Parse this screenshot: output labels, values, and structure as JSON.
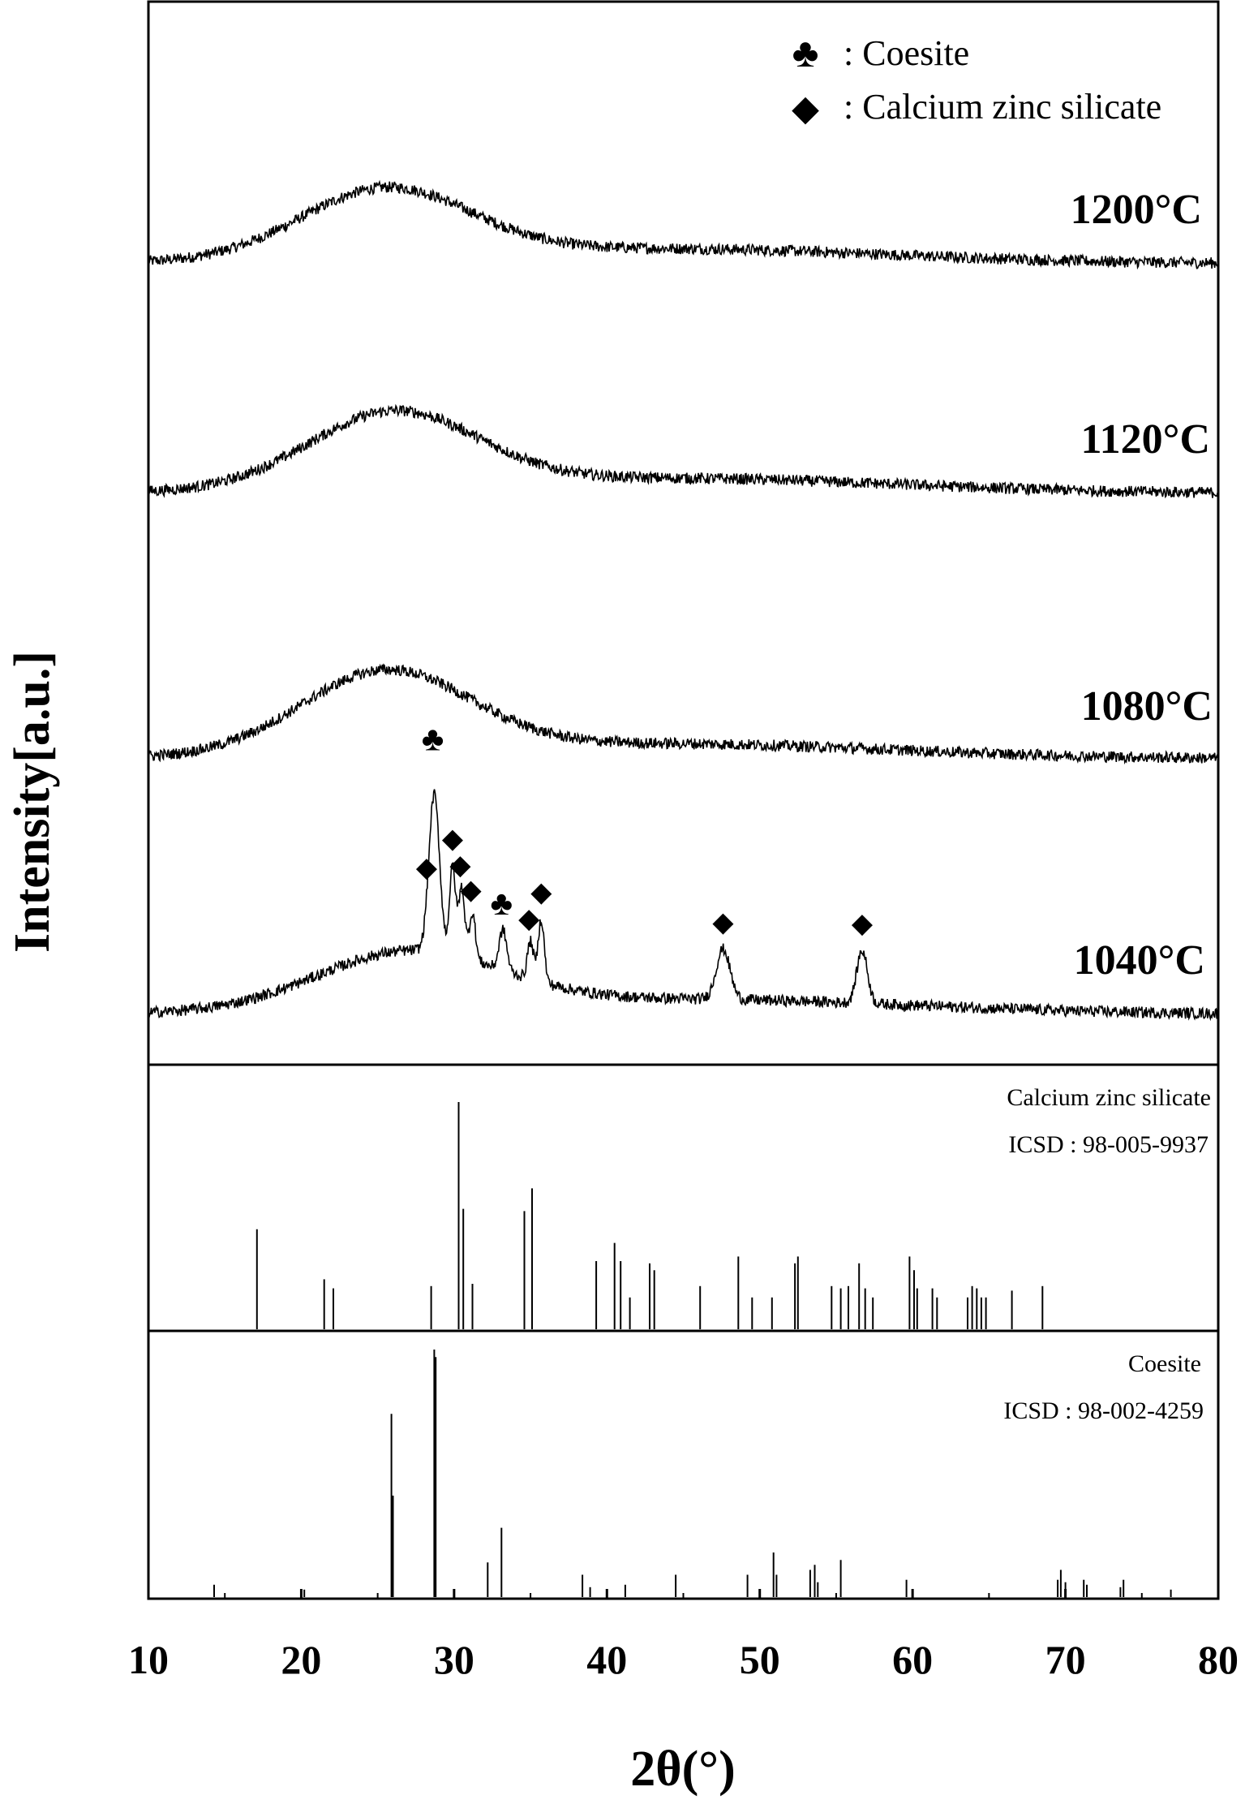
{
  "chart_data": {
    "type": "line",
    "xlabel": "2θ(°)",
    "ylabel": "Intensity[a.u.]",
    "xlim": [
      10,
      80
    ],
    "x_ticks": [
      10,
      20,
      30,
      40,
      50,
      60,
      70,
      80
    ],
    "grid": false,
    "legend": {
      "position": "top-right",
      "entries": [
        {
          "marker": "club",
          "symbol": "♣",
          "label": ": Coesite"
        },
        {
          "marker": "diamond",
          "symbol": "◆",
          "label": ": Calcium zinc silicate"
        }
      ]
    },
    "series": [
      {
        "name": "1200°C",
        "hump_center": 25.5,
        "hump_height": 0.55,
        "hump_width": 5.5,
        "peaks": []
      },
      {
        "name": "1120°C",
        "hump_center": 26.0,
        "hump_height": 0.6,
        "hump_width": 5.5,
        "peaks": []
      },
      {
        "name": "1080°C",
        "hump_center": 25.5,
        "hump_height": 0.65,
        "hump_width": 5.5,
        "peaks": []
      },
      {
        "name": "1040°C",
        "hump_center": 27.0,
        "hump_height": 0.45,
        "hump_width": 6.0,
        "peaks": [
          {
            "x": 28.7,
            "h": 1.25,
            "w": 0.35
          },
          {
            "x": 29.9,
            "h": 0.7,
            "w": 0.2
          },
          {
            "x": 30.5,
            "h": 0.55,
            "w": 0.2
          },
          {
            "x": 31.2,
            "h": 0.38,
            "w": 0.2
          },
          {
            "x": 33.2,
            "h": 0.32,
            "w": 0.25
          },
          {
            "x": 35.0,
            "h": 0.3,
            "w": 0.2
          },
          {
            "x": 35.7,
            "h": 0.5,
            "w": 0.2
          },
          {
            "x": 47.6,
            "h": 0.4,
            "w": 0.45
          },
          {
            "x": 56.7,
            "h": 0.42,
            "w": 0.35
          }
        ],
        "markers": [
          {
            "x": 28.2,
            "symbol": "◆",
            "phase": "Calcium zinc silicate"
          },
          {
            "x": 28.6,
            "symbol": "♣",
            "phase": "Coesite"
          },
          {
            "x": 29.9,
            "symbol": "◆",
            "phase": "Calcium zinc silicate"
          },
          {
            "x": 30.4,
            "symbol": "◆",
            "phase": "Calcium zinc silicate"
          },
          {
            "x": 31.1,
            "symbol": "◆",
            "phase": "Calcium zinc silicate"
          },
          {
            "x": 33.1,
            "symbol": "♣",
            "phase": "Coesite"
          },
          {
            "x": 34.9,
            "symbol": "◆",
            "phase": "Calcium zinc silicate"
          },
          {
            "x": 35.7,
            "symbol": "◆",
            "phase": "Calcium zinc silicate"
          },
          {
            "x": 47.6,
            "symbol": "◆",
            "phase": "Calcium zinc silicate"
          },
          {
            "x": 56.7,
            "symbol": "◆",
            "phase": "Calcium zinc silicate"
          }
        ]
      }
    ],
    "reference_patterns": [
      {
        "name": "Calcium zinc silicate",
        "id": "ICSD : 98-005-9937",
        "sticks": [
          [
            17.1,
            0.44
          ],
          [
            21.5,
            0.22
          ],
          [
            22.1,
            0.18
          ],
          [
            28.5,
            0.19
          ],
          [
            30.3,
            1.0
          ],
          [
            30.6,
            0.53
          ],
          [
            31.2,
            0.2
          ],
          [
            34.6,
            0.52
          ],
          [
            35.1,
            0.62
          ],
          [
            39.3,
            0.3
          ],
          [
            40.5,
            0.38
          ],
          [
            40.9,
            0.3
          ],
          [
            41.5,
            0.14
          ],
          [
            42.8,
            0.29
          ],
          [
            43.1,
            0.26
          ],
          [
            46.1,
            0.19
          ],
          [
            48.6,
            0.32
          ],
          [
            49.5,
            0.14
          ],
          [
            50.8,
            0.14
          ],
          [
            52.3,
            0.29
          ],
          [
            52.5,
            0.32
          ],
          [
            54.7,
            0.19
          ],
          [
            55.3,
            0.18
          ],
          [
            55.8,
            0.19
          ],
          [
            56.5,
            0.29
          ],
          [
            56.9,
            0.18
          ],
          [
            57.4,
            0.14
          ],
          [
            59.8,
            0.32
          ],
          [
            60.1,
            0.26
          ],
          [
            60.3,
            0.18
          ],
          [
            61.3,
            0.18
          ],
          [
            61.6,
            0.14
          ],
          [
            63.6,
            0.14
          ],
          [
            63.9,
            0.19
          ],
          [
            64.2,
            0.18
          ],
          [
            64.5,
            0.14
          ],
          [
            64.8,
            0.14
          ],
          [
            66.5,
            0.17
          ],
          [
            68.5,
            0.19
          ]
        ]
      },
      {
        "name": "Coesite",
        "id": "ICSD : 98-002-4259",
        "sticks": [
          [
            14.3,
            0.05
          ],
          [
            20.2,
            0.03
          ],
          [
            25.9,
            0.74
          ],
          [
            26.0,
            0.41
          ],
          [
            28.7,
            1.0
          ],
          [
            28.8,
            0.97
          ],
          [
            32.2,
            0.14
          ],
          [
            33.1,
            0.28
          ],
          [
            38.4,
            0.09
          ],
          [
            38.9,
            0.04
          ],
          [
            41.2,
            0.05
          ],
          [
            44.5,
            0.09
          ],
          [
            49.2,
            0.09
          ],
          [
            50.9,
            0.18
          ],
          [
            51.1,
            0.09
          ],
          [
            53.3,
            0.11
          ],
          [
            53.6,
            0.13
          ],
          [
            53.8,
            0.06
          ],
          [
            55.3,
            0.15
          ],
          [
            59.6,
            0.07
          ],
          [
            69.5,
            0.07
          ],
          [
            69.7,
            0.11
          ],
          [
            70.0,
            0.06
          ],
          [
            71.2,
            0.07
          ],
          [
            71.4,
            0.05
          ],
          [
            73.6,
            0.04
          ],
          [
            73.8,
            0.07
          ],
          [
            76.9,
            0.03
          ]
        ]
      }
    ]
  }
}
